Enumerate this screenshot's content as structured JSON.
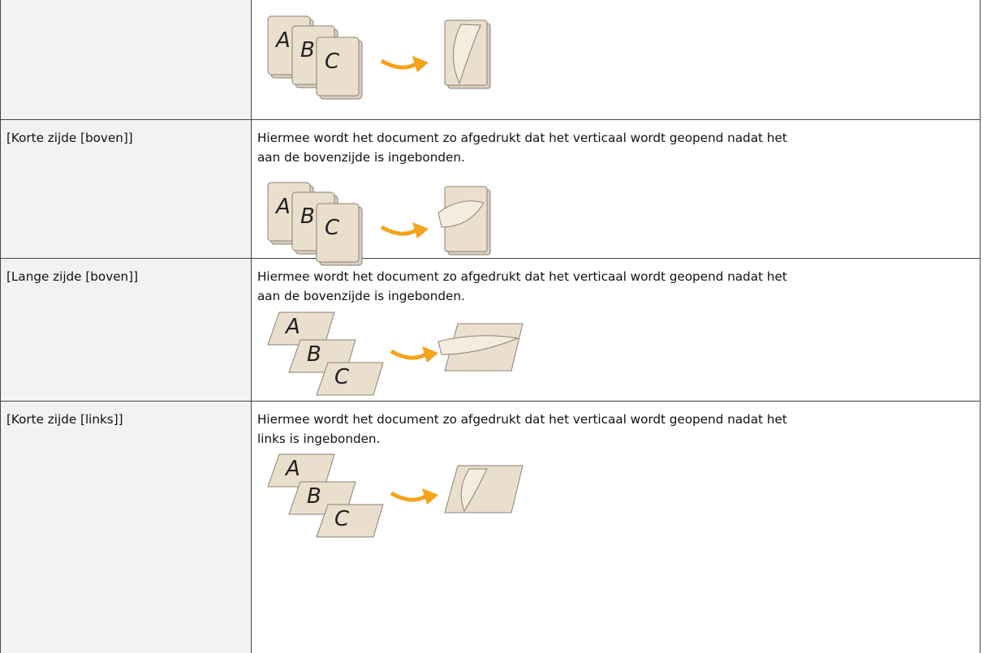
{
  "illustration": {
    "letters": [
      "A",
      "B",
      "C"
    ]
  },
  "table": {
    "rows": [
      {
        "label": "[Korte zijde [boven]]",
        "description": [
          "Hiermee wordt het document zo afgedrukt dat het verticaal wordt geopend nadat het",
          "aan de bovenzijde is ingebonden."
        ]
      },
      {
        "label": "[Lange zijde [boven]]",
        "description": [
          "Hiermee wordt het document zo afgedrukt dat het verticaal wordt geopend nadat het",
          "aan de bovenzijde is ingebonden."
        ]
      },
      {
        "label": "[Korte zijde [links]]",
        "description": [
          "Hiermee wordt het document zo afgedrukt dat het verticaal wordt geopend nadat het",
          "links is ingebonden."
        ]
      }
    ]
  }
}
